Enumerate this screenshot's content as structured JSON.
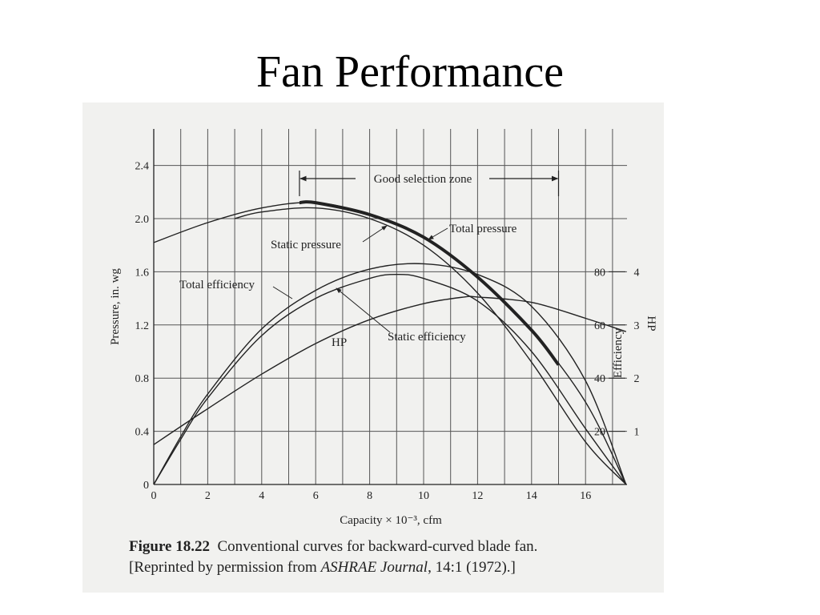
{
  "slide": {
    "title": "Fan Performance"
  },
  "caption": {
    "label": "Figure 18.22",
    "line1_text": "Conventional curves for backward-curved blade fan.",
    "line2_prefix": "[Reprinted by permission from ",
    "journal": "ASHRAE Journal",
    "line2_suffix": ", 14:1 (1972).]"
  },
  "colors": {
    "ink": "#222222",
    "grid": "#555555",
    "paper": "#f1f1ef"
  },
  "chart_data": {
    "type": "line",
    "xlabel": "Capacity × 10⁻³, cfm",
    "ylabel": "Pressure, in. wg",
    "y2label": "Efficiency",
    "y3label": "HP",
    "xlim": [
      0,
      18
    ],
    "ylim": [
      0,
      2.4
    ],
    "y2lim": [
      0,
      120
    ],
    "y3lim": [
      0,
      6
    ],
    "grid": true,
    "x_ticks": [
      "0",
      "2",
      "4",
      "6",
      "8",
      "10",
      "12",
      "14",
      "16"
    ],
    "y_ticks": [
      "0",
      "0.4",
      "0.8",
      "1.2",
      "1.6",
      "2.0",
      "2.4"
    ],
    "y2_ticks": [
      "20",
      "40",
      "60",
      "80"
    ],
    "y3_ticks": [
      "1",
      "2",
      "3",
      "4"
    ],
    "annotations": {
      "zone": "Good selection zone",
      "zone_range": [
        5.4,
        15.0
      ],
      "static_pressure": "Static pressure",
      "total_pressure": "Total pressure",
      "total_efficiency": "Total efficiency",
      "static_efficiency": "Static efficiency",
      "hp": "HP"
    },
    "series": [
      {
        "name": "Total pressure",
        "x": [
          0,
          2,
          4,
          6,
          8,
          10,
          12,
          14,
          16,
          17.5
        ],
        "y": [
          1.82,
          1.97,
          2.08,
          2.12,
          2.03,
          1.86,
          1.56,
          1.16,
          0.62,
          0.0
        ]
      },
      {
        "name": "Static pressure",
        "x": [
          3,
          4,
          6,
          8,
          10,
          12,
          14,
          16,
          17.5
        ],
        "y": [
          2.0,
          2.05,
          2.08,
          2.0,
          1.8,
          1.44,
          0.92,
          0.32,
          0.0
        ]
      },
      {
        "name": "Total efficiency",
        "x": [
          0,
          1,
          2,
          4,
          6,
          8,
          10,
          12,
          14,
          16,
          17.5
        ],
        "y": [
          0.0,
          0.36,
          0.68,
          1.17,
          1.46,
          1.62,
          1.66,
          1.58,
          1.34,
          0.78,
          0.0
        ]
      },
      {
        "name": "Static efficiency",
        "x": [
          0,
          1,
          2,
          4,
          6,
          8,
          9,
          10,
          12,
          14,
          16,
          17.5
        ],
        "y": [
          0.0,
          0.34,
          0.65,
          1.12,
          1.4,
          1.55,
          1.58,
          1.55,
          1.38,
          1.0,
          0.42,
          0.0
        ]
      },
      {
        "name": "HP",
        "x": [
          0,
          2,
          4,
          6,
          8,
          10,
          11.5,
          12,
          14,
          16,
          17.5
        ],
        "y": [
          0.3,
          0.57,
          0.83,
          1.06,
          1.24,
          1.36,
          1.41,
          1.41,
          1.37,
          1.25,
          1.15
        ]
      }
    ],
    "bold_segment": {
      "x": [
        5.4,
        6,
        8,
        10,
        12,
        14,
        15.0
      ],
      "y": [
        2.12,
        2.12,
        2.03,
        1.86,
        1.56,
        1.16,
        0.9
      ]
    }
  }
}
